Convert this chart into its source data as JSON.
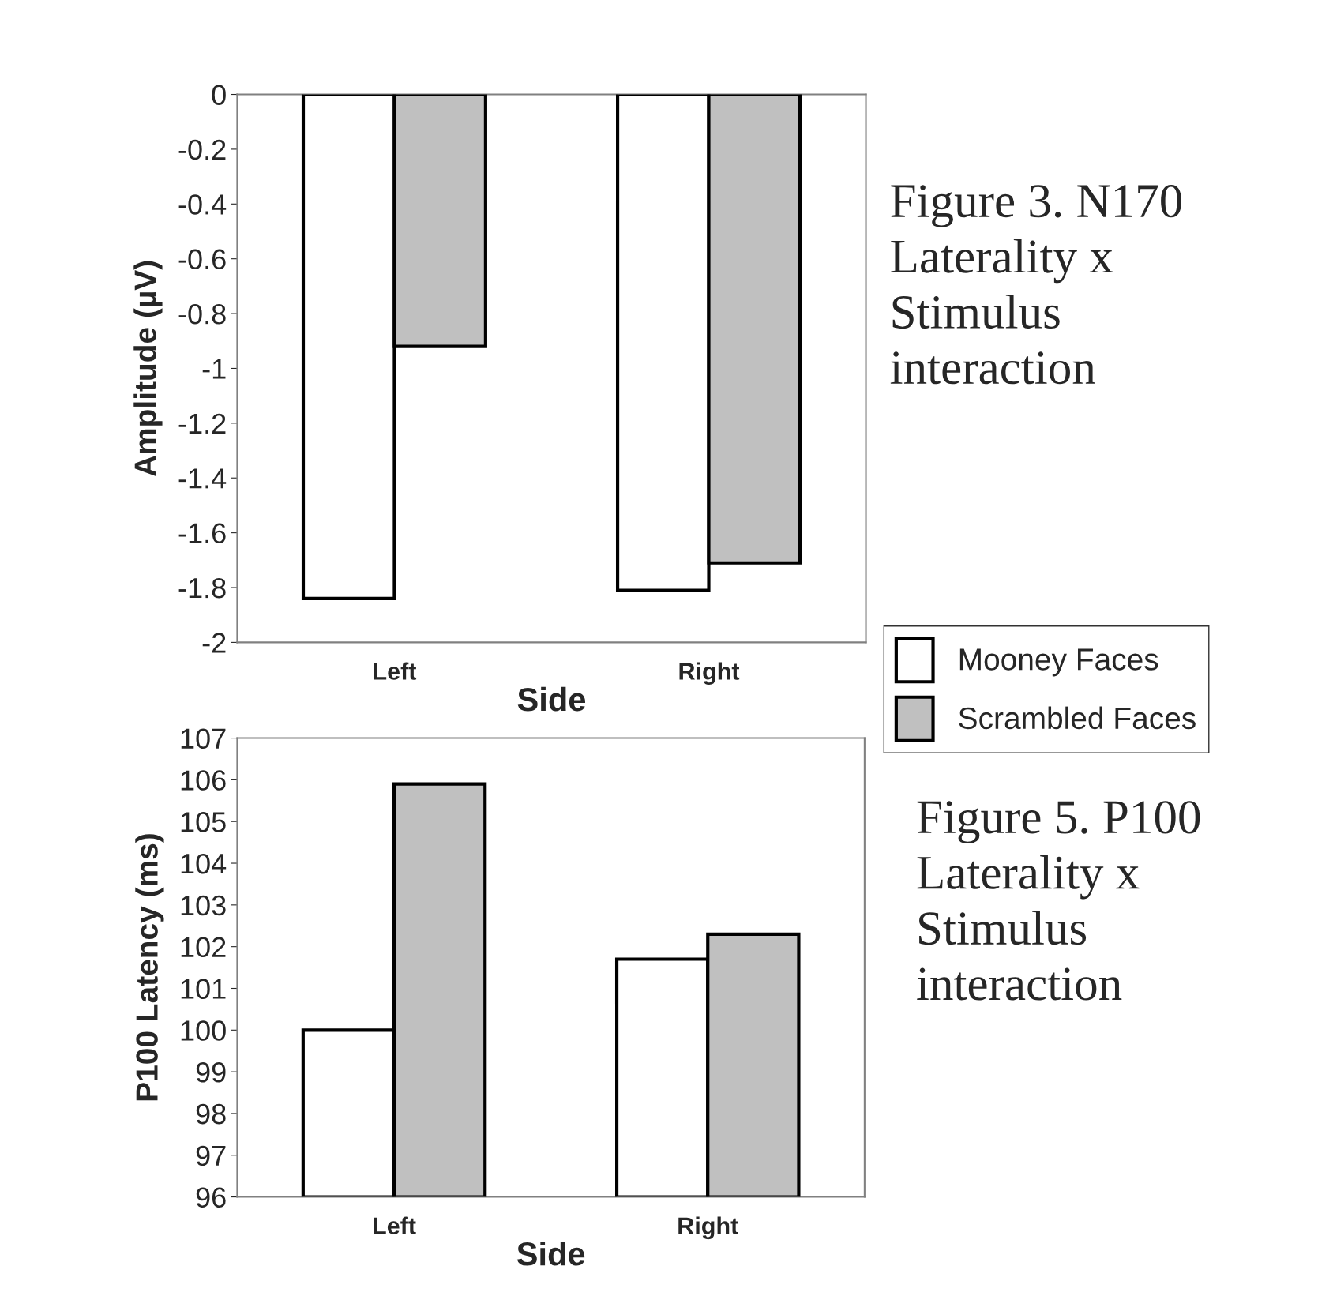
{
  "chart_data": [
    {
      "type": "bar",
      "ylabel": "Amplitude (µV)",
      "xlabel": "Side",
      "categories": [
        "Left",
        "Right"
      ],
      "series": [
        {
          "name": "Mooney Faces",
          "color": "#ffffff",
          "values": [
            -1.84,
            -1.81
          ]
        },
        {
          "name": "Scrambled Faces",
          "color": "#c0c0c0",
          "values": [
            -0.92,
            -1.71
          ]
        }
      ],
      "ylim": [
        -2,
        0
      ],
      "yticks": [
        0,
        -0.2,
        -0.4,
        -0.6,
        -0.8,
        -1,
        -1.2,
        -1.4,
        -1.6,
        -1.8,
        -2
      ],
      "grid": false,
      "legend": "bottom right",
      "annotations": [
        "Figure 3. N170\nLaterality x\nStimulus\ninteraction"
      ]
    },
    {
      "type": "bar",
      "ylabel": "P100 Latency (ms)",
      "xlabel": "Side",
      "categories": [
        "Left",
        "Right"
      ],
      "series": [
        {
          "color": "#ffffff",
          "values": [
            100,
            101.7
          ]
        },
        {
          "color": "#c0c0c0",
          "values": [
            105.9,
            102.3
          ]
        }
      ],
      "ylim": [
        96,
        107
      ],
      "yticks": [
        96,
        97,
        98,
        99,
        100,
        101,
        102,
        103,
        104,
        105,
        106,
        107
      ],
      "grid": false,
      "annotations": [
        "Figure 5. P100\nLaterality x\nStimulus\ninteraction"
      ]
    }
  ]
}
